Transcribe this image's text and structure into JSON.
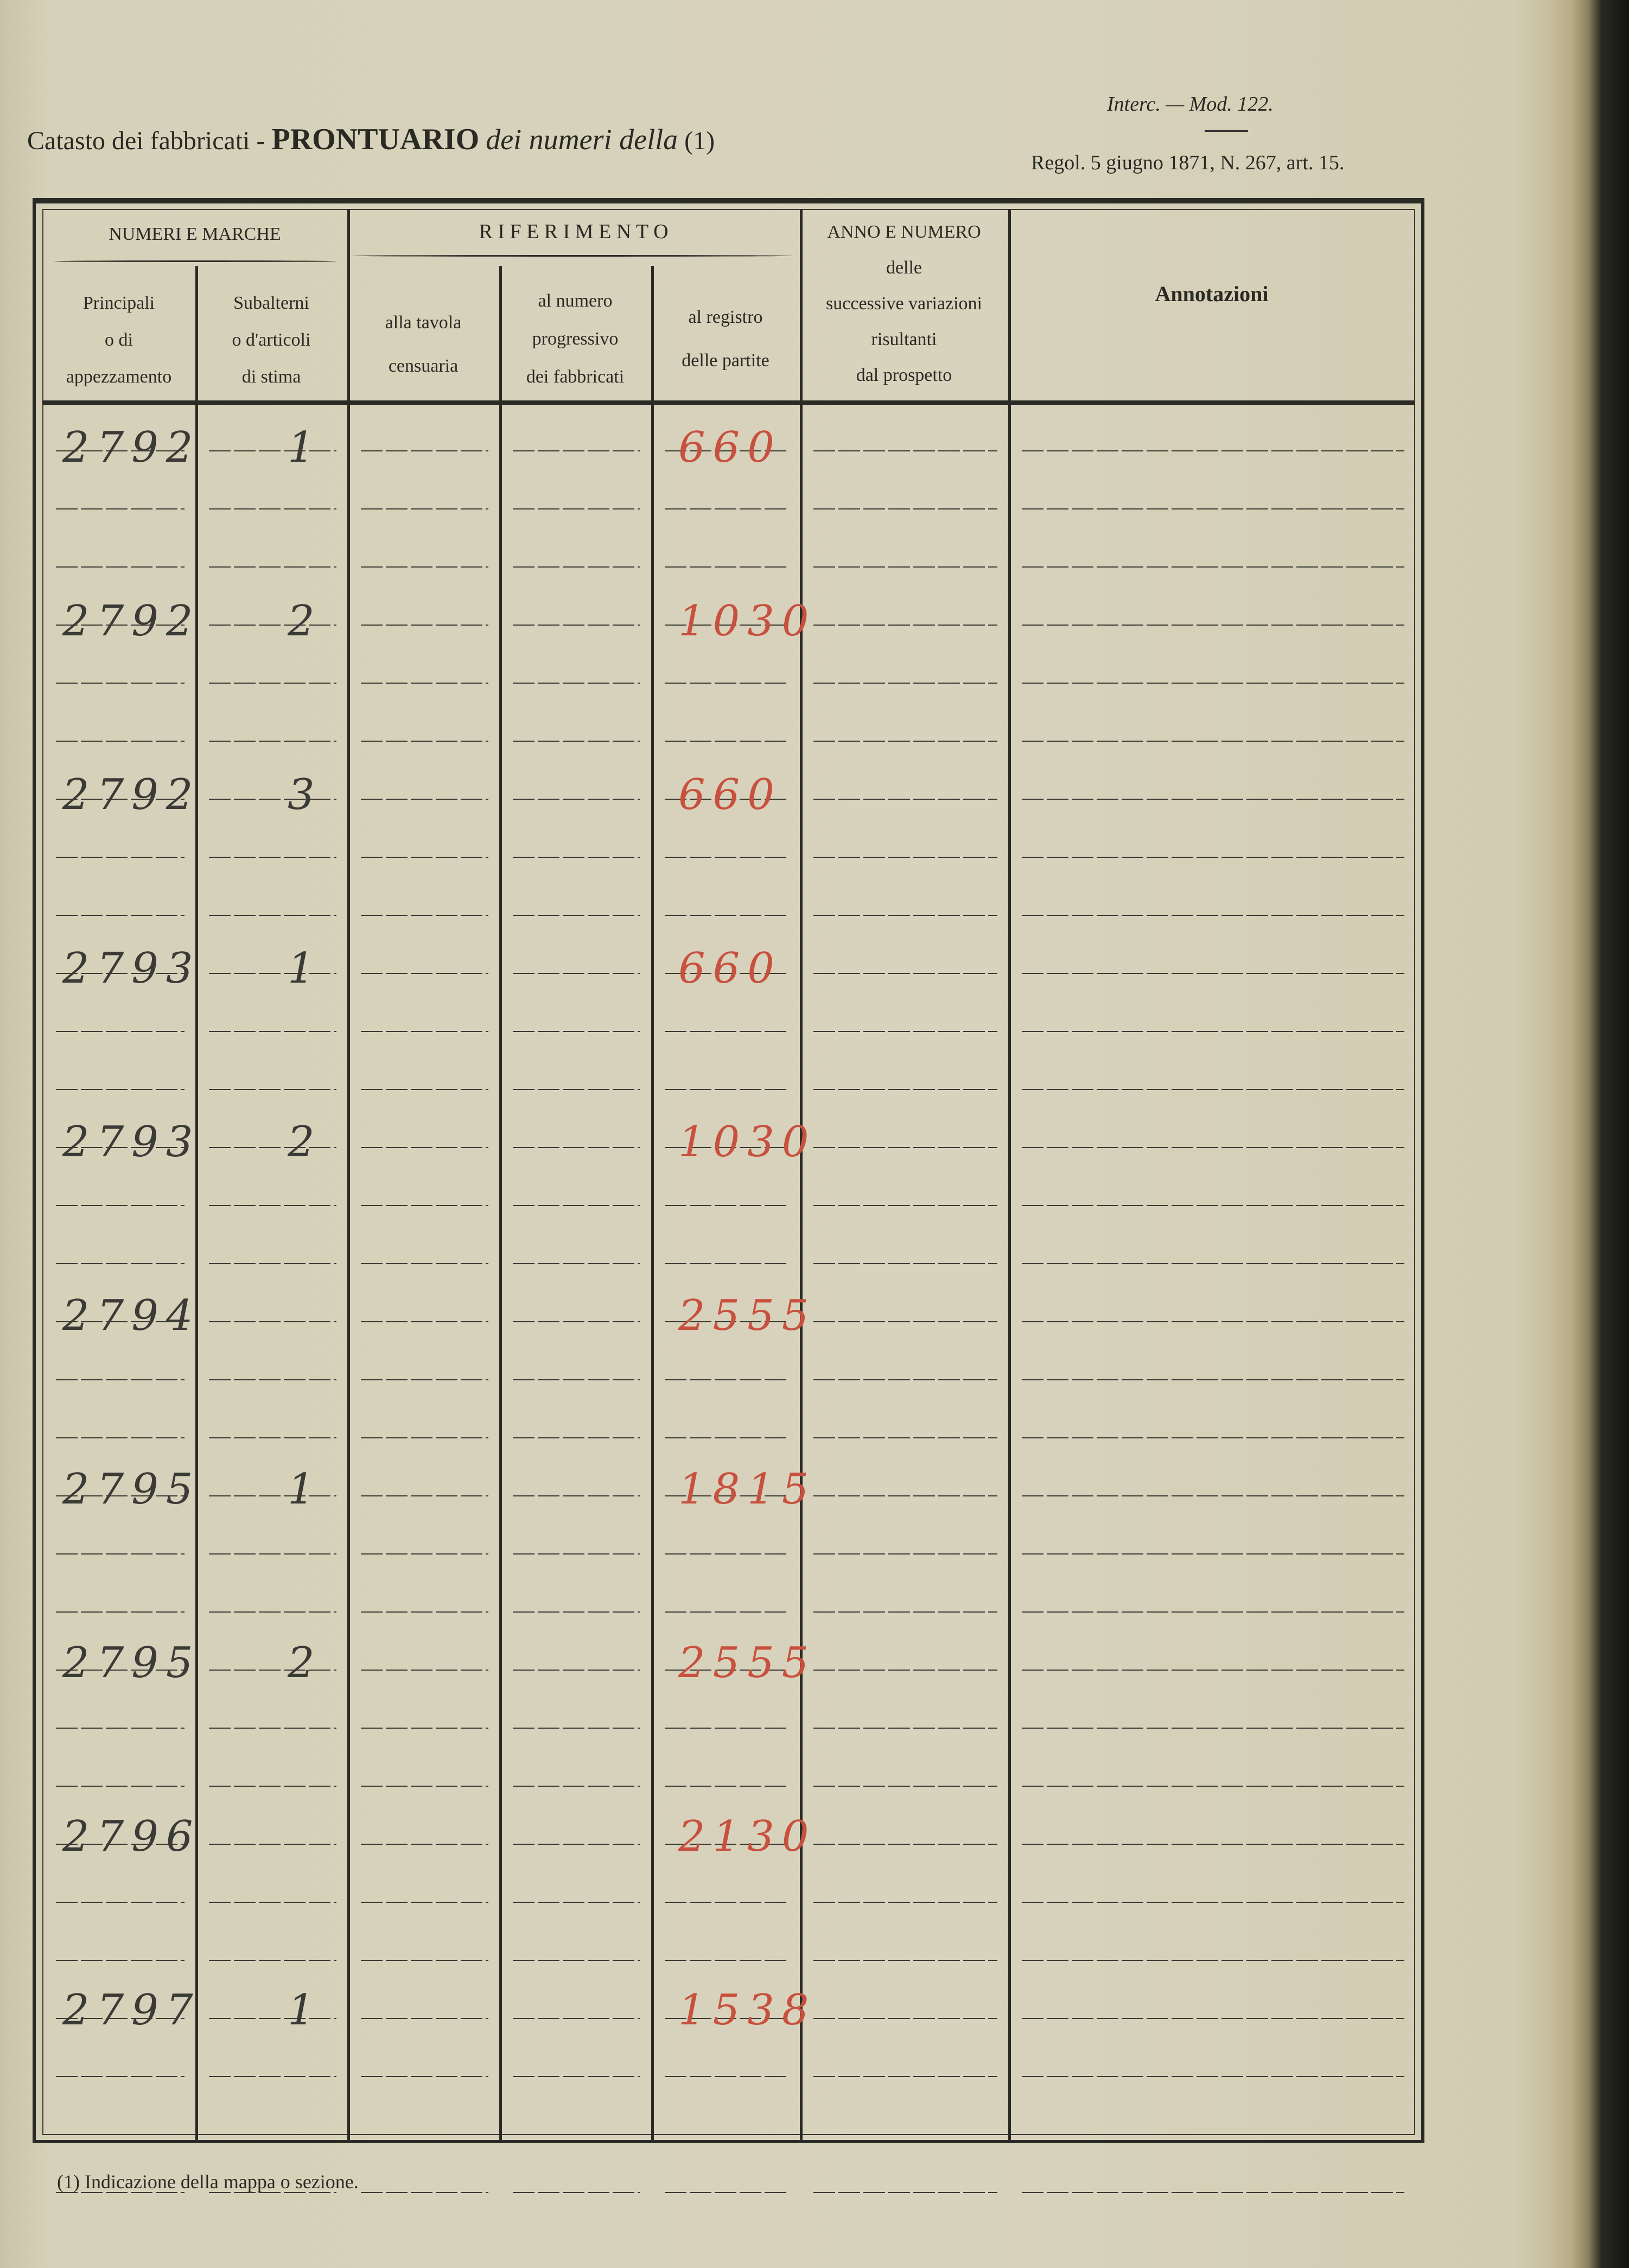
{
  "header": {
    "title_prefix": "Catasto dei fabbricati -",
    "title_bold": "PRONTUARIO",
    "title_italic": "dei numeri della",
    "title_note": "(1)",
    "form_id": "Interc. — Mod. 122.",
    "regulation": "Regol. 5 giugno 1871, N. 267, art. 15."
  },
  "columns": {
    "group_numeri": "NUMERI E MARCHE",
    "group_riferimento": "R I F E R I M E N T O",
    "principali": [
      "Principali",
      "o di",
      "appezzamento"
    ],
    "subalterni": [
      "Subalterni",
      "o d'articoli",
      "di stima"
    ],
    "tavola": [
      "alla tavola",
      "censuaria"
    ],
    "progressivo": [
      "al numero",
      "progressivo",
      "dei fabbricati"
    ],
    "registro": [
      "al registro",
      "delle partite"
    ],
    "anno": [
      "ANNO E NUMERO",
      "delle",
      "successive variazioni",
      "risultanti",
      "dal prospetto"
    ],
    "annotazioni": "Annotazioni"
  },
  "rows": [
    {
      "principale": "2792",
      "subalterno": "1",
      "registro": "660"
    },
    {
      "principale": "2792",
      "subalterno": "2",
      "registro": "1030"
    },
    {
      "principale": "2792",
      "subalterno": "3",
      "registro": "660"
    },
    {
      "principale": "2793",
      "subalterno": "1",
      "registro": "660"
    },
    {
      "principale": "2793",
      "subalterno": "2",
      "registro": "1030"
    },
    {
      "principale": "2794",
      "subalterno": "",
      "registro": "2555"
    },
    {
      "principale": "2795",
      "subalterno": "1",
      "registro": "1815"
    },
    {
      "principale": "2795",
      "subalterno": "2",
      "registro": "2555"
    },
    {
      "principale": "2796",
      "subalterno": "",
      "registro": "2130"
    },
    {
      "principale": "2797",
      "subalterno": "1",
      "registro": "1538"
    }
  ],
  "footnote": "(1) Indicazione della mappa o sezione.",
  "colors": {
    "red_ink": "#c8503e",
    "black_ink": "#3a3a36",
    "paper": "#d8d3bd"
  }
}
